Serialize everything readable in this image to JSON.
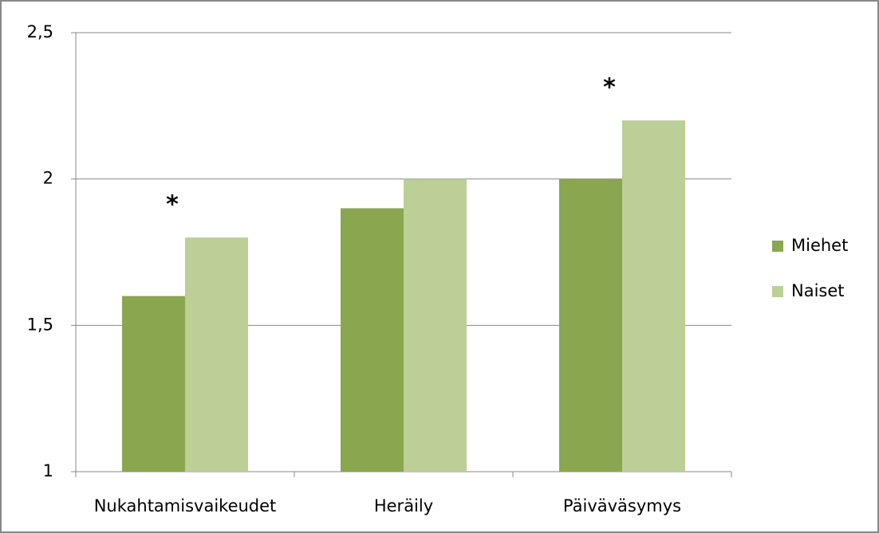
{
  "chart_data": {
    "type": "bar",
    "categories": [
      "Nukahtamisvaikeudet",
      "Heräily",
      "Päiväväsymys"
    ],
    "series": [
      {
        "name": "Miehet",
        "color": "#8aa64f",
        "values": [
          1.6,
          1.9,
          2.0
        ]
      },
      {
        "name": "Naiset",
        "color": "#bbcf96",
        "values": [
          1.8,
          2.0,
          2.2
        ]
      }
    ],
    "ylim": [
      1,
      2.5
    ],
    "yticks": [
      1,
      {
        "value": 1.5,
        "label": "1,5"
      },
      2,
      {
        "value": 2.5,
        "label": "2,5"
      }
    ],
    "grid": true,
    "legend": "right",
    "annotations": [
      {
        "text": "*",
        "x": "Nukahtamisvaikeudet"
      },
      {
        "text": "*",
        "x": "Päiväväsymys"
      }
    ]
  }
}
